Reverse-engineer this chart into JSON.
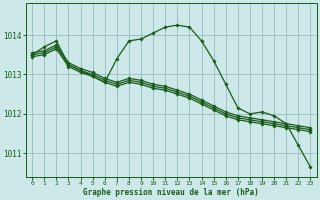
{
  "bg_color": "#cce8e8",
  "grid_color": "#99bbbb",
  "line_color": "#1a5c1a",
  "xlabel": "Graphe pression niveau de la mer (hPa)",
  "ylim": [
    1010.4,
    1014.8
  ],
  "yticks": [
    1011,
    1012,
    1013,
    1014
  ],
  "xlim": [
    -0.5,
    23.5
  ],
  "xticks": [
    0,
    1,
    2,
    3,
    4,
    5,
    6,
    7,
    8,
    9,
    10,
    11,
    12,
    13,
    14,
    15,
    16,
    17,
    18,
    19,
    20,
    21,
    22,
    23
  ],
  "series": [
    {
      "x": [
        0,
        1,
        2,
        3,
        4,
        5,
        6,
        7,
        8,
        9,
        10,
        11,
        12,
        13,
        14,
        15,
        16,
        17,
        18,
        19,
        20,
        21,
        22,
        23
      ],
      "y": [
        1013.55,
        1013.6,
        1013.75,
        1013.3,
        1013.15,
        1013.05,
        1012.9,
        1012.8,
        1012.9,
        1012.85,
        1012.75,
        1012.7,
        1012.6,
        1012.5,
        1012.35,
        1012.2,
        1012.05,
        1011.95,
        1011.9,
        1011.85,
        1011.8,
        1011.75,
        1011.7,
        1011.65
      ]
    },
    {
      "x": [
        0,
        1,
        2,
        3,
        4,
        5,
        6,
        7,
        8,
        9,
        10,
        11,
        12,
        13,
        14,
        15,
        16,
        17,
        18,
        19,
        20,
        21,
        22,
        23
      ],
      "y": [
        1013.5,
        1013.55,
        1013.7,
        1013.25,
        1013.1,
        1013.0,
        1012.85,
        1012.75,
        1012.85,
        1012.8,
        1012.7,
        1012.65,
        1012.55,
        1012.45,
        1012.3,
        1012.15,
        1012.0,
        1011.9,
        1011.85,
        1011.8,
        1011.75,
        1011.7,
        1011.65,
        1011.6
      ]
    },
    {
      "x": [
        0,
        1,
        2,
        3,
        4,
        5,
        6,
        7,
        8,
        9,
        10,
        11,
        12,
        13,
        14,
        15,
        16,
        17,
        18,
        19,
        20,
        21,
        22,
        23
      ],
      "y": [
        1013.45,
        1013.5,
        1013.65,
        1013.2,
        1013.05,
        1012.95,
        1012.8,
        1012.7,
        1012.8,
        1012.75,
        1012.65,
        1012.6,
        1012.5,
        1012.4,
        1012.25,
        1012.1,
        1011.95,
        1011.85,
        1011.8,
        1011.75,
        1011.7,
        1011.65,
        1011.6,
        1011.55
      ]
    },
    {
      "x": [
        0,
        1,
        2,
        3,
        4,
        5,
        6,
        7,
        8,
        9,
        10,
        11,
        12,
        13,
        14,
        15,
        16,
        17,
        18,
        19,
        20,
        21,
        22,
        23
      ],
      "y": [
        1013.5,
        1013.7,
        1013.85,
        1013.25,
        1013.1,
        1012.95,
        1012.8,
        1013.4,
        1013.85,
        1013.9,
        1014.05,
        1014.2,
        1014.25,
        1014.2,
        1013.85,
        1013.35,
        1012.75,
        1012.15,
        1012.0,
        1012.05,
        1011.95,
        1011.75,
        1011.2,
        1010.65
      ]
    }
  ]
}
